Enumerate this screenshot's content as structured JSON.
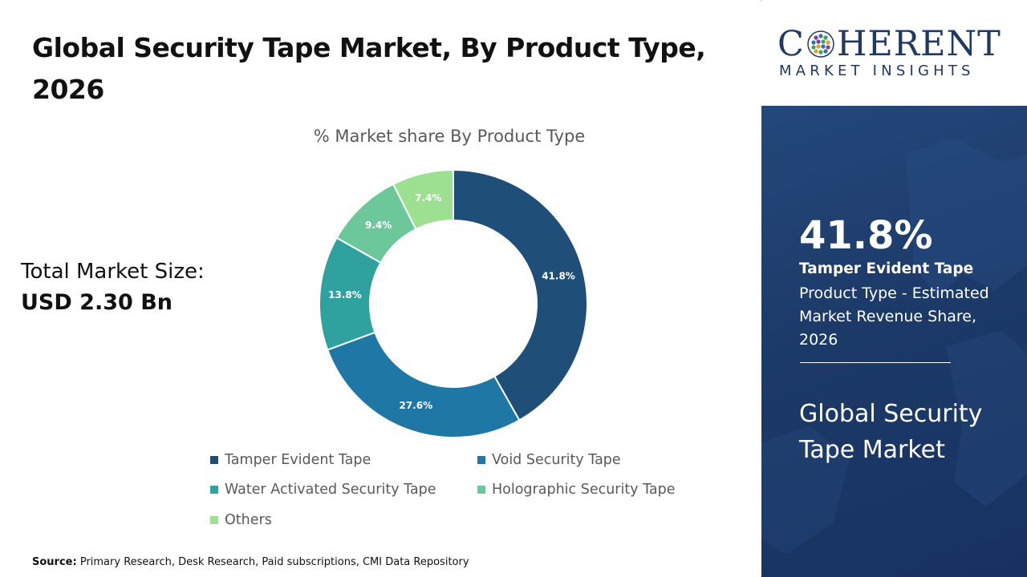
{
  "title": "Global Security Tape Market, By Product Type, 2026",
  "total_market": {
    "label": "Total Market Size:",
    "value": "USD 2.30 Bn"
  },
  "source": {
    "label": "Source:",
    "text": "Primary Research, Desk Research, Paid subscriptions, CMI Data Repository"
  },
  "logo": {
    "word_first": "C",
    "word_rest": "HERENT",
    "subtitle": "MARKET INSIGHTS"
  },
  "highlight": {
    "percent": "41.8%",
    "segment": "Tamper Evident Tape",
    "description": "Product Type - Estimated Market Revenue Share, 2026",
    "market_name": "Global Security Tape Market"
  },
  "chart_data": {
    "type": "pie",
    "donut": true,
    "title": "% Market share By Product Type",
    "categories": [
      "Tamper Evident Tape",
      "Void Security Tape",
      "Water Activated Security Tape",
      "Holographic Security Tape",
      "Others"
    ],
    "values": [
      41.8,
      27.6,
      13.8,
      9.4,
      7.4
    ],
    "labels": [
      "41.8%",
      "27.6%",
      "13.8%",
      "9.4%",
      "7.4%"
    ],
    "colors": [
      "#1f4e79",
      "#1f77a5",
      "#2fa2a0",
      "#6cc79a",
      "#9ee092"
    ],
    "legend_position": "bottom"
  }
}
